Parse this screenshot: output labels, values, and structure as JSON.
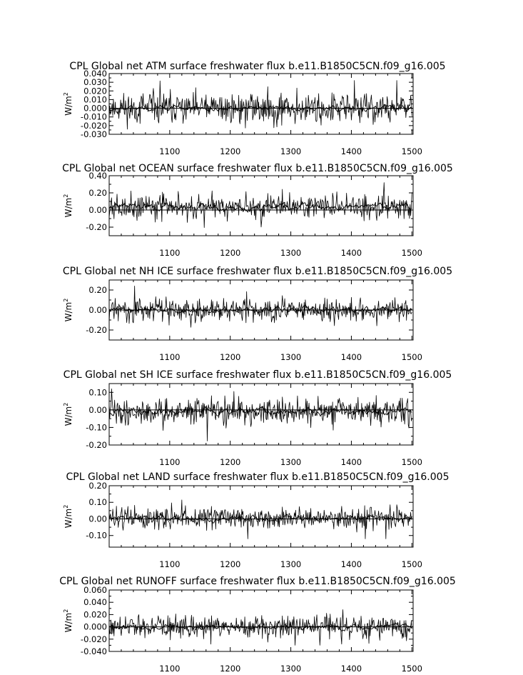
{
  "figure": {
    "background": "#ffffff",
    "line_color": "#000000"
  },
  "chart_data": [
    {
      "type": "line",
      "title": "CPL Global net ATM surface freshwater flux b.e11.B1850C5CN.f09_g16.005",
      "xlabel": "",
      "ylabel": "W/m",
      "ylabel_sup": "2",
      "xlim": [
        1000,
        1502
      ],
      "ylim": [
        -0.03,
        0.04
      ],
      "xticks": [
        1100,
        1200,
        1300,
        1400,
        1500
      ],
      "xtick_labels": [
        "1100",
        "1200",
        "1300",
        "1400",
        "1500"
      ],
      "yticks": [
        -0.03,
        -0.02,
        -0.01,
        0.0,
        0.01,
        0.02,
        0.03,
        0.04
      ],
      "ytick_labels": [
        "-0.030",
        "-0.020",
        "-0.010",
        "0.000",
        "0.010",
        "0.020",
        "0.030",
        "0.040"
      ],
      "zero_line": 0.0,
      "series": [
        {
          "style": "annual",
          "x_start": 1000,
          "x_end": 1500,
          "mean": 0.0,
          "amplitude": 0.011,
          "min": -0.026,
          "max": 0.032,
          "seed": 11
        },
        {
          "style": "smoothed",
          "x_start": 1000,
          "x_end": 1500,
          "mean": 0.0,
          "amplitude": 0.0015,
          "seed": 12
        }
      ]
    },
    {
      "type": "line",
      "title": "CPL Global net OCEAN surface freshwater flux b.e11.B1850C5CN.f09_g16.005",
      "xlabel": "",
      "ylabel": "W/m",
      "ylabel_sup": "2",
      "xlim": [
        1000,
        1502
      ],
      "ylim": [
        -0.3,
        0.4
      ],
      "xticks": [
        1100,
        1200,
        1300,
        1400,
        1500
      ],
      "xtick_labels": [
        "1100",
        "1200",
        "1300",
        "1400",
        "1500"
      ],
      "yticks": [
        -0.2,
        0.0,
        0.2,
        0.4
      ],
      "ytick_labels": [
        "-0.20",
        "0.00",
        "0.20",
        "0.40"
      ],
      "zero_line": 0.0,
      "series": [
        {
          "style": "annual",
          "x_start": 1000,
          "x_end": 1500,
          "mean": 0.04,
          "amplitude": 0.09,
          "min": -0.25,
          "max": 0.32,
          "seed": 21
        },
        {
          "style": "smoothed",
          "x_start": 1000,
          "x_end": 1500,
          "mean": 0.04,
          "amplitude": 0.02,
          "seed": 22
        }
      ]
    },
    {
      "type": "line",
      "title": "CPL Global net NH ICE surface freshwater flux b.e11.B1850C5CN.f09_g16.005",
      "xlabel": "",
      "ylabel": "W/m",
      "ylabel_sup": "2",
      "xlim": [
        1000,
        1502
      ],
      "ylim": [
        -0.3,
        0.3
      ],
      "xticks": [
        1100,
        1200,
        1300,
        1400,
        1500
      ],
      "xtick_labels": [
        "1100",
        "1200",
        "1300",
        "1400",
        "1500"
      ],
      "yticks": [
        -0.2,
        0.0,
        0.2
      ],
      "ytick_labels": [
        "-0.20",
        "0.00",
        "0.20"
      ],
      "zero_line": 0.0,
      "series": [
        {
          "style": "annual",
          "x_start": 1000,
          "x_end": 1500,
          "mean": 0.0,
          "amplitude": 0.07,
          "min": -0.25,
          "max": 0.24,
          "seed": 31
        },
        {
          "style": "smoothed",
          "x_start": 1000,
          "x_end": 1500,
          "mean": 0.0,
          "amplitude": 0.015,
          "seed": 32
        }
      ]
    },
    {
      "type": "line",
      "title": "CPL Global net SH ICE surface freshwater flux b.e11.B1850C5CN.f09_g16.005",
      "xlabel": "",
      "ylabel": "W/m",
      "ylabel_sup": "2",
      "xlim": [
        1000,
        1502
      ],
      "ylim": [
        -0.2,
        0.15
      ],
      "xticks": [
        1100,
        1200,
        1300,
        1400,
        1500
      ],
      "xtick_labels": [
        "1100",
        "1200",
        "1300",
        "1400",
        "1500"
      ],
      "yticks": [
        -0.2,
        -0.1,
        0.0,
        0.1
      ],
      "ytick_labels": [
        "-0.20",
        "-0.10",
        "0.00",
        "0.10"
      ],
      "zero_line": 0.0,
      "series": [
        {
          "style": "annual",
          "x_start": 1000,
          "x_end": 1500,
          "mean": -0.01,
          "amplitude": 0.045,
          "min": -0.19,
          "max": 0.12,
          "seed": 41
        },
        {
          "style": "smoothed",
          "x_start": 1000,
          "x_end": 1500,
          "mean": -0.01,
          "amplitude": 0.01,
          "seed": 42
        }
      ]
    },
    {
      "type": "line",
      "title": "CPL Global net LAND surface freshwater flux b.e11.B1850C5CN.f09_g16.005",
      "xlabel": "",
      "ylabel": "W/m",
      "ylabel_sup": "2",
      "xlim": [
        1000,
        1502
      ],
      "ylim": [
        -0.17,
        0.2
      ],
      "xticks": [
        1100,
        1200,
        1300,
        1400,
        1500
      ],
      "xtick_labels": [
        "1100",
        "1200",
        "1300",
        "1400",
        "1500"
      ],
      "yticks": [
        -0.1,
        0.0,
        0.1,
        0.2
      ],
      "ytick_labels": [
        "-0.10",
        "0.00",
        "0.10",
        "0.20"
      ],
      "zero_line": 0.0,
      "series": [
        {
          "style": "annual",
          "x_start": 1000,
          "x_end": 1500,
          "mean": 0.005,
          "amplitude": 0.04,
          "min": -0.12,
          "max": 0.15,
          "seed": 51
        },
        {
          "style": "smoothed",
          "x_start": 1000,
          "x_end": 1500,
          "mean": 0.005,
          "amplitude": 0.008,
          "seed": 52
        }
      ]
    },
    {
      "type": "line",
      "title": "CPL Global net RUNOFF surface freshwater flux b.e11.B1850C5CN.f09_g16.005",
      "xlabel": "",
      "ylabel": "W/m",
      "ylabel_sup": "2",
      "xlim": [
        1000,
        1502
      ],
      "ylim": [
        -0.04,
        0.06
      ],
      "xticks": [
        1100,
        1200,
        1300,
        1400,
        1500
      ],
      "xtick_labels": [
        "1100",
        "1200",
        "1300",
        "1400",
        "1500"
      ],
      "yticks": [
        -0.04,
        -0.02,
        0.0,
        0.02,
        0.04,
        0.06
      ],
      "ytick_labels": [
        "-0.040",
        "-0.020",
        "0.000",
        "0.020",
        "0.040",
        "0.060"
      ],
      "zero_line": 0.0,
      "series": [
        {
          "style": "annual",
          "x_start": 1000,
          "x_end": 1500,
          "mean": 0.0,
          "amplitude": 0.012,
          "min": -0.03,
          "max": 0.04,
          "seed": 61
        },
        {
          "style": "smoothed",
          "x_start": 1000,
          "x_end": 1500,
          "mean": 0.0,
          "amplitude": 0.002,
          "seed": 62
        }
      ]
    }
  ]
}
